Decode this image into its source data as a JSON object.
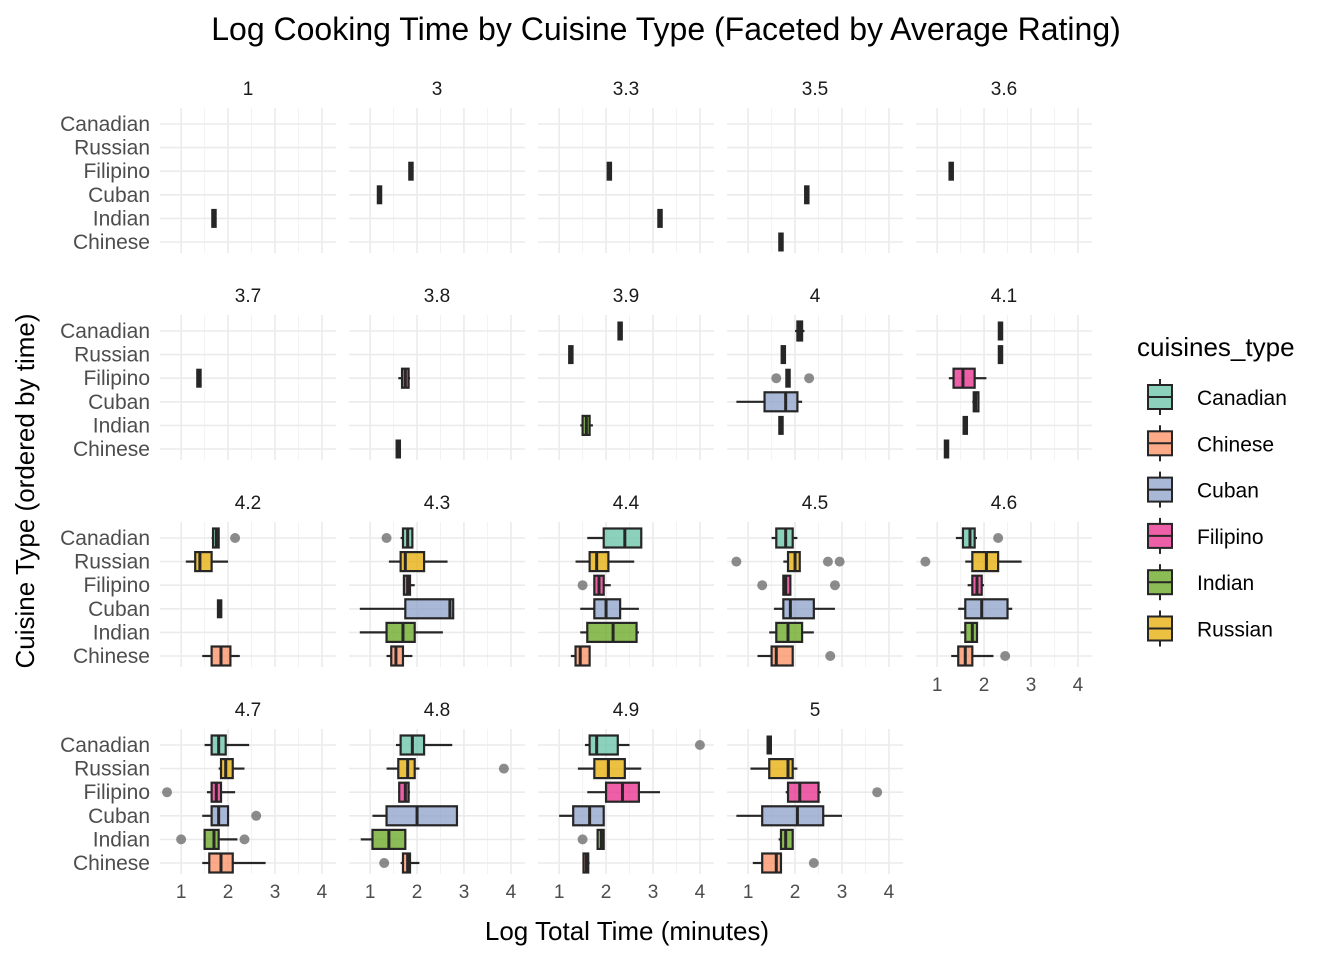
{
  "colors": {
    "Canadian": "#66c2a5",
    "Chinese": "#fc8d62",
    "Cuban": "#8da0cb",
    "Filipino": "#e7298a",
    "Indian": "#66a61e",
    "Russian": "#e6ab02",
    "box_outline": "#262626",
    "outlier": "#666666"
  },
  "chart_data": {
    "type": "boxplot",
    "title": "Log Cooking Time by Cuisine Type (Faceted by Average Rating)",
    "xlabel": "Log Total Time (minutes)",
    "ylabel": "Cuisine Type (ordered by time)",
    "xlim": [
      0.55,
      4.3
    ],
    "xticks": [
      1,
      2,
      3,
      4
    ],
    "categories": [
      "Canadian",
      "Russian",
      "Filipino",
      "Cuban",
      "Indian",
      "Chinese"
    ],
    "grid": true,
    "legend": {
      "title": "cuisines_type",
      "position": "right",
      "entries": [
        "Canadian",
        "Chinese",
        "Cuban",
        "Filipino",
        "Indian",
        "Russian"
      ]
    },
    "facets": [
      {
        "label": "1",
        "boxes": [
          {
            "cuisine": "Indian",
            "min": 1.7,
            "q1": 1.7,
            "median": 1.7,
            "q3": 1.7,
            "max": 1.7,
            "outliers": []
          }
        ]
      },
      {
        "label": "3",
        "boxes": [
          {
            "cuisine": "Filipino",
            "min": 1.87,
            "q1": 1.87,
            "median": 1.87,
            "q3": 1.87,
            "max": 1.87,
            "outliers": []
          },
          {
            "cuisine": "Cuban",
            "min": 1.2,
            "q1": 1.2,
            "median": 1.2,
            "q3": 1.2,
            "max": 1.2,
            "outliers": []
          }
        ]
      },
      {
        "label": "3.3",
        "boxes": [
          {
            "cuisine": "Filipino",
            "min": 2.07,
            "q1": 2.07,
            "median": 2.07,
            "q3": 2.07,
            "max": 2.07,
            "outliers": []
          },
          {
            "cuisine": "Indian",
            "min": 3.15,
            "q1": 3.15,
            "median": 3.15,
            "q3": 3.15,
            "max": 3.15,
            "outliers": []
          }
        ]
      },
      {
        "label": "3.5",
        "boxes": [
          {
            "cuisine": "Cuban",
            "min": 2.25,
            "q1": 2.25,
            "median": 2.25,
            "q3": 2.25,
            "max": 2.25,
            "outliers": []
          },
          {
            "cuisine": "Chinese",
            "min": 1.7,
            "q1": 1.7,
            "median": 1.7,
            "q3": 1.7,
            "max": 1.7,
            "outliers": []
          }
        ]
      },
      {
        "label": "3.6",
        "boxes": [
          {
            "cuisine": "Filipino",
            "min": 1.3,
            "q1": 1.3,
            "median": 1.3,
            "q3": 1.3,
            "max": 1.3,
            "outliers": []
          }
        ]
      },
      {
        "label": "3.7",
        "boxes": [
          {
            "cuisine": "Filipino",
            "min": 1.38,
            "q1": 1.38,
            "median": 1.38,
            "q3": 1.38,
            "max": 1.38,
            "outliers": []
          }
        ]
      },
      {
        "label": "3.8",
        "boxes": [
          {
            "cuisine": "Filipino",
            "min": 1.6,
            "q1": 1.68,
            "median": 1.75,
            "q3": 1.82,
            "max": 1.85,
            "outliers": []
          },
          {
            "cuisine": "Chinese",
            "min": 1.6,
            "q1": 1.6,
            "median": 1.6,
            "q3": 1.6,
            "max": 1.6,
            "outliers": []
          }
        ]
      },
      {
        "label": "3.9",
        "boxes": [
          {
            "cuisine": "Canadian",
            "min": 2.3,
            "q1": 2.3,
            "median": 2.3,
            "q3": 2.3,
            "max": 2.3,
            "outliers": []
          },
          {
            "cuisine": "Russian",
            "min": 1.25,
            "q1": 1.25,
            "median": 1.25,
            "q3": 1.25,
            "max": 1.25,
            "outliers": []
          },
          {
            "cuisine": "Indian",
            "min": 1.45,
            "q1": 1.5,
            "median": 1.58,
            "q3": 1.65,
            "max": 1.72,
            "outliers": []
          }
        ]
      },
      {
        "label": "4",
        "boxes": [
          {
            "cuisine": "Canadian",
            "min": 2.0,
            "q1": 2.05,
            "median": 2.1,
            "q3": 2.15,
            "max": 2.2,
            "outliers": []
          },
          {
            "cuisine": "Russian",
            "min": 1.75,
            "q1": 1.75,
            "median": 1.75,
            "q3": 1.75,
            "max": 1.75,
            "outliers": []
          },
          {
            "cuisine": "Filipino",
            "min": 1.85,
            "q1": 1.85,
            "median": 1.85,
            "q3": 1.85,
            "max": 1.85,
            "outliers": [
              1.6,
              2.3
            ]
          },
          {
            "cuisine": "Cuban",
            "min": 0.75,
            "q1": 1.35,
            "median": 1.8,
            "q3": 2.05,
            "max": 2.15,
            "outliers": []
          },
          {
            "cuisine": "Indian",
            "min": 1.7,
            "q1": 1.7,
            "median": 1.7,
            "q3": 1.7,
            "max": 1.7,
            "outliers": []
          }
        ]
      },
      {
        "label": "4.1",
        "boxes": [
          {
            "cuisine": "Canadian",
            "min": 2.35,
            "q1": 2.35,
            "median": 2.35,
            "q3": 2.35,
            "max": 2.35,
            "outliers": []
          },
          {
            "cuisine": "Russian",
            "min": 2.35,
            "q1": 2.35,
            "median": 2.35,
            "q3": 2.35,
            "max": 2.35,
            "outliers": []
          },
          {
            "cuisine": "Filipino",
            "min": 1.25,
            "q1": 1.35,
            "median": 1.55,
            "q3": 1.8,
            "max": 2.05,
            "outliers": []
          },
          {
            "cuisine": "Cuban",
            "min": 1.75,
            "q1": 1.78,
            "median": 1.82,
            "q3": 1.88,
            "max": 1.9,
            "outliers": []
          },
          {
            "cuisine": "Indian",
            "min": 1.6,
            "q1": 1.6,
            "median": 1.6,
            "q3": 1.6,
            "max": 1.6,
            "outliers": []
          },
          {
            "cuisine": "Chinese",
            "min": 1.2,
            "q1": 1.2,
            "median": 1.2,
            "q3": 1.2,
            "max": 1.2,
            "outliers": []
          }
        ]
      },
      {
        "label": "4.2",
        "boxes": [
          {
            "cuisine": "Canadian",
            "min": 1.65,
            "q1": 1.68,
            "median": 1.75,
            "q3": 1.8,
            "max": 1.82,
            "outliers": [
              2.15
            ]
          },
          {
            "cuisine": "Russian",
            "min": 1.1,
            "q1": 1.3,
            "median": 1.4,
            "q3": 1.65,
            "max": 2.0,
            "outliers": []
          },
          {
            "cuisine": "Cuban",
            "min": 1.82,
            "q1": 1.82,
            "median": 1.82,
            "q3": 1.82,
            "max": 1.82,
            "outliers": []
          },
          {
            "cuisine": "Chinese",
            "min": 1.45,
            "q1": 1.65,
            "median": 1.85,
            "q3": 2.05,
            "max": 2.25,
            "outliers": []
          }
        ]
      },
      {
        "label": "4.3",
        "boxes": [
          {
            "cuisine": "Canadian",
            "min": 1.65,
            "q1": 1.7,
            "median": 1.8,
            "q3": 1.9,
            "max": 1.9,
            "outliers": [
              1.35
            ]
          },
          {
            "cuisine": "Russian",
            "min": 1.4,
            "q1": 1.65,
            "median": 1.75,
            "q3": 2.15,
            "max": 2.65,
            "outliers": []
          },
          {
            "cuisine": "Filipino",
            "min": 1.7,
            "q1": 1.72,
            "median": 1.8,
            "q3": 1.85,
            "max": 1.95,
            "outliers": []
          },
          {
            "cuisine": "Cuban",
            "min": 0.78,
            "q1": 1.75,
            "median": 2.7,
            "q3": 2.77,
            "max": 2.77,
            "outliers": []
          },
          {
            "cuisine": "Indian",
            "min": 0.78,
            "q1": 1.35,
            "median": 1.7,
            "q3": 1.95,
            "max": 2.55,
            "outliers": []
          },
          {
            "cuisine": "Chinese",
            "min": 1.35,
            "q1": 1.45,
            "median": 1.55,
            "q3": 1.7,
            "max": 1.9,
            "outliers": []
          }
        ]
      },
      {
        "label": "4.4",
        "boxes": [
          {
            "cuisine": "Canadian",
            "min": 1.6,
            "q1": 1.95,
            "median": 2.4,
            "q3": 2.75,
            "max": 2.75,
            "outliers": []
          },
          {
            "cuisine": "Russian",
            "min": 1.35,
            "q1": 1.65,
            "median": 1.8,
            "q3": 2.05,
            "max": 2.6,
            "outliers": []
          },
          {
            "cuisine": "Filipino",
            "min": 1.75,
            "q1": 1.75,
            "median": 1.85,
            "q3": 1.95,
            "max": 2.1,
            "outliers": [
              1.5
            ]
          },
          {
            "cuisine": "Cuban",
            "min": 1.45,
            "q1": 1.75,
            "median": 2.0,
            "q3": 2.3,
            "max": 2.7,
            "outliers": []
          },
          {
            "cuisine": "Indian",
            "min": 1.45,
            "q1": 1.6,
            "median": 2.15,
            "q3": 2.65,
            "max": 2.7,
            "outliers": []
          },
          {
            "cuisine": "Chinese",
            "min": 1.25,
            "q1": 1.35,
            "median": 1.45,
            "q3": 1.65,
            "max": 1.65,
            "outliers": []
          }
        ]
      },
      {
        "label": "4.5",
        "boxes": [
          {
            "cuisine": "Canadian",
            "min": 1.5,
            "q1": 1.6,
            "median": 1.8,
            "q3": 1.95,
            "max": 2.05,
            "outliers": []
          },
          {
            "cuisine": "Russian",
            "min": 1.75,
            "q1": 1.85,
            "median": 2.0,
            "q3": 2.1,
            "max": 2.1,
            "outliers": [
              0.75,
              2.7,
              2.95
            ]
          },
          {
            "cuisine": "Filipino",
            "min": 1.75,
            "q1": 1.75,
            "median": 1.8,
            "q3": 1.9,
            "max": 1.9,
            "outliers": [
              1.3,
              2.85
            ]
          },
          {
            "cuisine": "Cuban",
            "min": 1.55,
            "q1": 1.75,
            "median": 1.9,
            "q3": 2.4,
            "max": 2.85,
            "outliers": []
          },
          {
            "cuisine": "Indian",
            "min": 1.45,
            "q1": 1.6,
            "median": 1.85,
            "q3": 2.15,
            "max": 2.4,
            "outliers": []
          },
          {
            "cuisine": "Chinese",
            "min": 1.2,
            "q1": 1.5,
            "median": 1.6,
            "q3": 1.95,
            "max": 1.95,
            "outliers": [
              2.75
            ]
          }
        ]
      },
      {
        "label": "4.6",
        "boxes": [
          {
            "cuisine": "Canadian",
            "min": 1.4,
            "q1": 1.55,
            "median": 1.7,
            "q3": 1.8,
            "max": 1.85,
            "outliers": [
              2.3
            ]
          },
          {
            "cuisine": "Russian",
            "min": 1.6,
            "q1": 1.75,
            "median": 2.05,
            "q3": 2.3,
            "max": 2.8,
            "outliers": [
              0.75
            ]
          },
          {
            "cuisine": "Filipino",
            "min": 1.65,
            "q1": 1.75,
            "median": 1.85,
            "q3": 1.95,
            "max": 2.0,
            "outliers": []
          },
          {
            "cuisine": "Cuban",
            "min": 1.45,
            "q1": 1.6,
            "median": 1.95,
            "q3": 2.5,
            "max": 2.6,
            "outliers": []
          },
          {
            "cuisine": "Indian",
            "min": 1.5,
            "q1": 1.6,
            "median": 1.75,
            "q3": 1.85,
            "max": 1.85,
            "outliers": []
          },
          {
            "cuisine": "Chinese",
            "min": 1.3,
            "q1": 1.45,
            "median": 1.6,
            "q3": 1.75,
            "max": 2.2,
            "outliers": [
              2.45
            ]
          }
        ]
      },
      {
        "label": "4.7",
        "boxes": [
          {
            "cuisine": "Canadian",
            "min": 1.5,
            "q1": 1.65,
            "median": 1.8,
            "q3": 1.95,
            "max": 2.45,
            "outliers": []
          },
          {
            "cuisine": "Russian",
            "min": 1.8,
            "q1": 1.85,
            "median": 1.95,
            "q3": 2.1,
            "max": 2.35,
            "outliers": []
          },
          {
            "cuisine": "Filipino",
            "min": 1.55,
            "q1": 1.65,
            "median": 1.75,
            "q3": 1.85,
            "max": 2.15,
            "outliers": [
              0.7
            ]
          },
          {
            "cuisine": "Cuban",
            "min": 1.45,
            "q1": 1.65,
            "median": 1.8,
            "q3": 2.0,
            "max": 2.0,
            "outliers": [
              2.6
            ]
          },
          {
            "cuisine": "Indian",
            "min": 1.5,
            "q1": 1.5,
            "median": 1.7,
            "q3": 1.8,
            "max": 2.2,
            "outliers": [
              1.0,
              2.35
            ]
          },
          {
            "cuisine": "Chinese",
            "min": 1.45,
            "q1": 1.6,
            "median": 1.85,
            "q3": 2.1,
            "max": 2.8,
            "outliers": []
          }
        ]
      },
      {
        "label": "4.8",
        "boxes": [
          {
            "cuisine": "Canadian",
            "min": 1.55,
            "q1": 1.65,
            "median": 1.9,
            "q3": 2.15,
            "max": 2.75,
            "outliers": []
          },
          {
            "cuisine": "Russian",
            "min": 1.35,
            "q1": 1.6,
            "median": 1.8,
            "q3": 1.95,
            "max": 2.05,
            "outliers": [
              3.85
            ]
          },
          {
            "cuisine": "Filipino",
            "min": 1.6,
            "q1": 1.62,
            "median": 1.75,
            "q3": 1.82,
            "max": 1.85,
            "outliers": []
          },
          {
            "cuisine": "Cuban",
            "min": 1.05,
            "q1": 1.35,
            "median": 2.0,
            "q3": 2.85,
            "max": 2.85,
            "outliers": []
          },
          {
            "cuisine": "Indian",
            "min": 0.8,
            "q1": 1.05,
            "median": 1.4,
            "q3": 1.75,
            "max": 1.75,
            "outliers": []
          },
          {
            "cuisine": "Chinese",
            "min": 1.65,
            "q1": 1.7,
            "median": 1.8,
            "q3": 1.85,
            "max": 2.05,
            "outliers": [
              1.3
            ]
          }
        ]
      },
      {
        "label": "4.9",
        "boxes": [
          {
            "cuisine": "Canadian",
            "min": 1.55,
            "q1": 1.65,
            "median": 1.8,
            "q3": 2.25,
            "max": 2.5,
            "outliers": [
              4.0
            ]
          },
          {
            "cuisine": "Russian",
            "min": 1.4,
            "q1": 1.75,
            "median": 2.05,
            "q3": 2.4,
            "max": 2.75,
            "outliers": []
          },
          {
            "cuisine": "Filipino",
            "min": 1.6,
            "q1": 2.0,
            "median": 2.35,
            "q3": 2.7,
            "max": 3.15,
            "outliers": []
          },
          {
            "cuisine": "Cuban",
            "min": 1.0,
            "q1": 1.3,
            "median": 1.65,
            "q3": 1.95,
            "max": 1.95,
            "outliers": []
          },
          {
            "cuisine": "Indian",
            "min": 1.8,
            "q1": 1.82,
            "median": 1.9,
            "q3": 1.95,
            "max": 1.95,
            "outliers": [
              1.5
            ]
          },
          {
            "cuisine": "Chinese",
            "min": 1.5,
            "q1": 1.52,
            "median": 1.58,
            "q3": 1.62,
            "max": 1.65,
            "outliers": []
          }
        ]
      },
      {
        "label": "5",
        "boxes": [
          {
            "cuisine": "Canadian",
            "min": 1.45,
            "q1": 1.45,
            "median": 1.45,
            "q3": 1.45,
            "max": 1.45,
            "outliers": []
          },
          {
            "cuisine": "Russian",
            "min": 1.05,
            "q1": 1.45,
            "median": 1.85,
            "q3": 1.95,
            "max": 2.05,
            "outliers": []
          },
          {
            "cuisine": "Filipino",
            "min": 1.8,
            "q1": 1.85,
            "median": 2.1,
            "q3": 2.5,
            "max": 2.55,
            "outliers": [
              3.75
            ]
          },
          {
            "cuisine": "Cuban",
            "min": 0.75,
            "q1": 1.3,
            "median": 2.05,
            "q3": 2.6,
            "max": 3.0,
            "outliers": []
          },
          {
            "cuisine": "Indian",
            "min": 1.65,
            "q1": 1.7,
            "median": 1.8,
            "q3": 1.95,
            "max": 1.95,
            "outliers": []
          },
          {
            "cuisine": "Chinese",
            "min": 1.1,
            "q1": 1.3,
            "median": 1.6,
            "q3": 1.7,
            "max": 1.7,
            "outliers": [
              2.4
            ]
          }
        ]
      }
    ]
  }
}
